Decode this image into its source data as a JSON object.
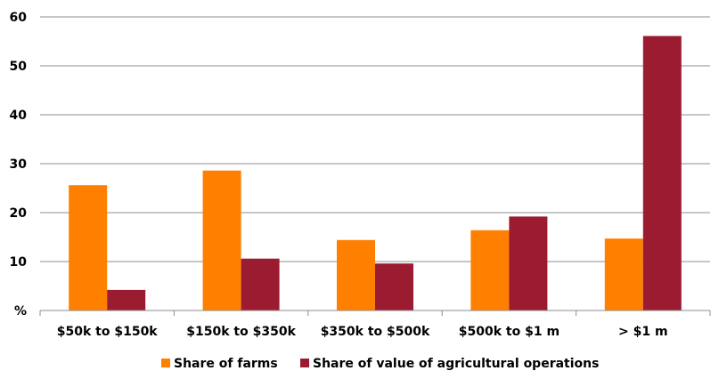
{
  "chart_data": {
    "type": "bar",
    "categories": [
      "$50k to $150k",
      "$150k to $350k",
      "$350k to $500k",
      "$500k to $1 m",
      "> $1 m"
    ],
    "series": [
      {
        "name": "Share of farms",
        "values": [
          25.6,
          28.6,
          14.4,
          16.4,
          14.7
        ],
        "color": "#FF7F00"
      },
      {
        "name": "Share of value of agricultural operations",
        "values": [
          4.2,
          10.6,
          9.6,
          19.2,
          56.1
        ],
        "color": "#9B1B30"
      }
    ],
    "ylim": [
      0,
      60
    ],
    "yticks": [
      "%",
      "10",
      "20",
      "30",
      "40",
      "50",
      "60"
    ],
    "ytick_values": [
      0,
      10,
      20,
      30,
      40,
      50,
      60
    ],
    "grid": true,
    "legend_position": "bottom"
  }
}
